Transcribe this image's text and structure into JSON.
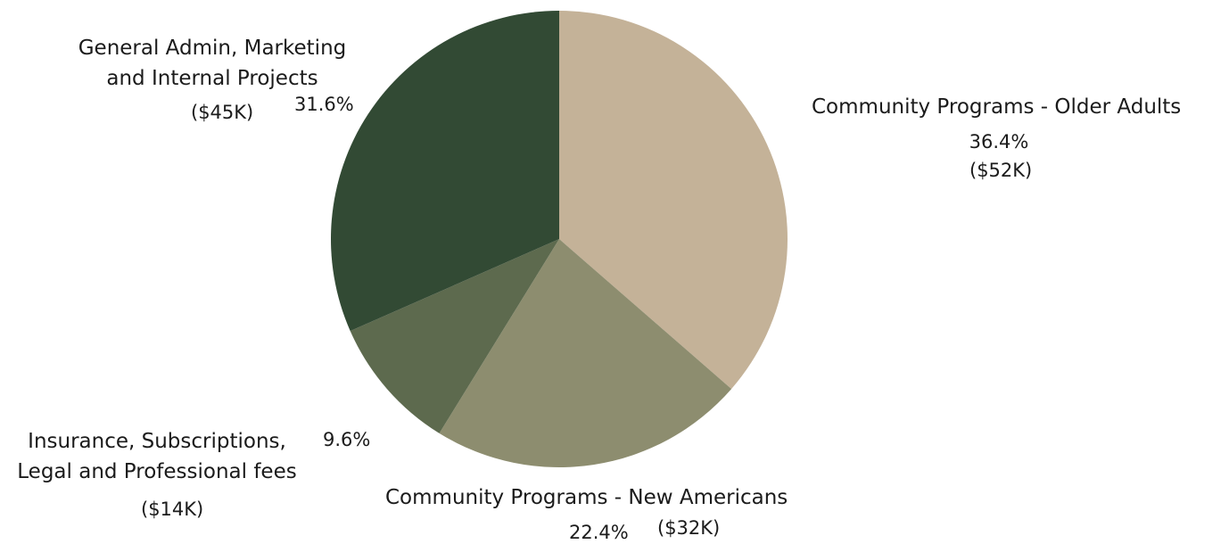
{
  "chart_data": {
    "type": "pie",
    "start_angle_deg": 0,
    "direction": "clockwise",
    "slices": [
      {
        "label": "Community Programs - Older Adults",
        "percent": 36.4,
        "percent_text": "36.4%",
        "amount_text": "($52K)",
        "color": "#c4b298"
      },
      {
        "label": "Community Programs - New Americans",
        "percent": 22.4,
        "percent_text": "22.4%",
        "amount_text": "($32K)",
        "color": "#8d8d6f"
      },
      {
        "label_lines": [
          "Insurance, Subscriptions,",
          "Legal and Professional fees"
        ],
        "percent": 9.6,
        "percent_text": "9.6%",
        "amount_text": "($14K)",
        "color": "#5d6a4e"
      },
      {
        "label_lines": [
          "General Admin, Marketing",
          "and Internal Projects"
        ],
        "percent": 31.6,
        "percent_text": "31.6%",
        "amount_text": "($45K)",
        "color": "#324a34"
      }
    ]
  }
}
